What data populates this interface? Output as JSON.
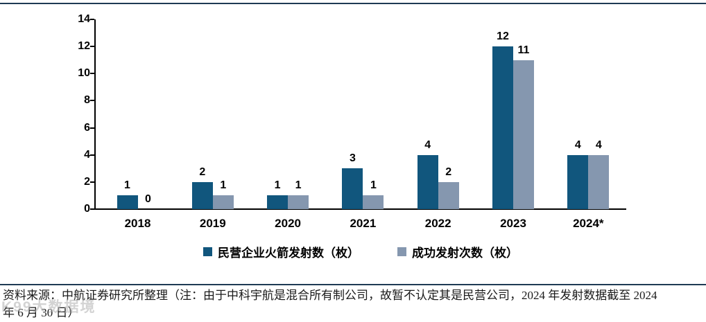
{
  "colors": {
    "accent_rule": "#1E3A54",
    "series_private": "#11567D",
    "series_success": "#8597AF",
    "axis": "#000000"
  },
  "chart_data": {
    "type": "bar",
    "title": "",
    "xlabel": "",
    "ylabel": "",
    "categories": [
      "2018",
      "2019",
      "2020",
      "2021",
      "2022",
      "2023",
      "2024*"
    ],
    "series": [
      {
        "name": "民营企业火箭发射数（枚）",
        "color": "#11567D",
        "values": [
          1,
          2,
          1,
          3,
          4,
          12,
          4
        ]
      },
      {
        "name": "成功发射次数（枚）",
        "color": "#8597AF",
        "values": [
          0,
          1,
          1,
          1,
          2,
          11,
          4
        ]
      }
    ],
    "ylim": [
      0,
      14
    ],
    "yticks": [
      0,
      2,
      4,
      6,
      8,
      10,
      12,
      14
    ],
    "grid": false,
    "legend_position": "bottom",
    "value_labels": true
  },
  "source_note": {
    "line1": "资料来源：中航证券研究所整理（注：由于中科宇航是混合所有制公司，故暂不认定其是民营公司，2024 年发射数据截至 2024",
    "line2": "年 6 月 30 日）"
  },
  "watermark": "K99大数据境"
}
